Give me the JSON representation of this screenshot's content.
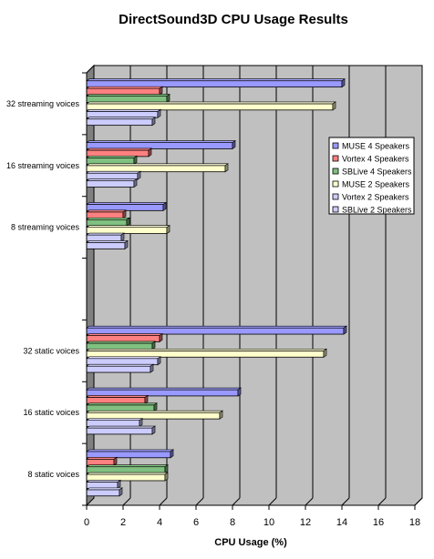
{
  "chart_data": {
    "type": "bar",
    "orientation": "horizontal",
    "style": "3d",
    "title": "DirectSound3D CPU Usage Results",
    "xlabel": "CPU Usage (%)",
    "ylabel": "",
    "xlim": [
      0,
      18
    ],
    "x_ticks": [
      "0",
      "2",
      "4",
      "6",
      "8",
      "10",
      "12",
      "14",
      "16",
      "18"
    ],
    "grid": "vertical major gridlines",
    "legend_position": "right",
    "plot_background": "#c0c0c0",
    "categories": [
      "32 streaming voices",
      "16 streaming voices",
      "8 streaming voices",
      "",
      "32 static voices",
      "16 static voices",
      "8 static voices"
    ],
    "series": [
      {
        "name": "MUSE 4 Speakers",
        "color": "#9999ff",
        "values": [
          14.0,
          8.0,
          4.2,
          null,
          14.1,
          8.3,
          4.6
        ]
      },
      {
        "name": "Vortex 4 Speakers",
        "color": "#ff8080",
        "values": [
          4.0,
          3.4,
          2.0,
          null,
          4.0,
          3.2,
          1.5
        ]
      },
      {
        "name": "SBLive 4 Speakers",
        "color": "#80c080",
        "values": [
          4.4,
          2.6,
          2.2,
          null,
          3.6,
          3.7,
          4.3
        ]
      },
      {
        "name": "MUSE 2 Speakers",
        "color": "#ffffcc",
        "values": [
          13.5,
          7.6,
          4.4,
          null,
          13.0,
          7.3,
          4.3
        ]
      },
      {
        "name": "Vortex 2 Speakers",
        "color": "#ccccff",
        "values": [
          3.9,
          2.8,
          1.9,
          null,
          3.9,
          2.9,
          1.7
        ]
      },
      {
        "name": "SBLive 2 Speakers",
        "color": "#ccccff",
        "values": [
          3.6,
          2.6,
          2.1,
          null,
          3.5,
          3.6,
          1.8
        ]
      }
    ]
  }
}
